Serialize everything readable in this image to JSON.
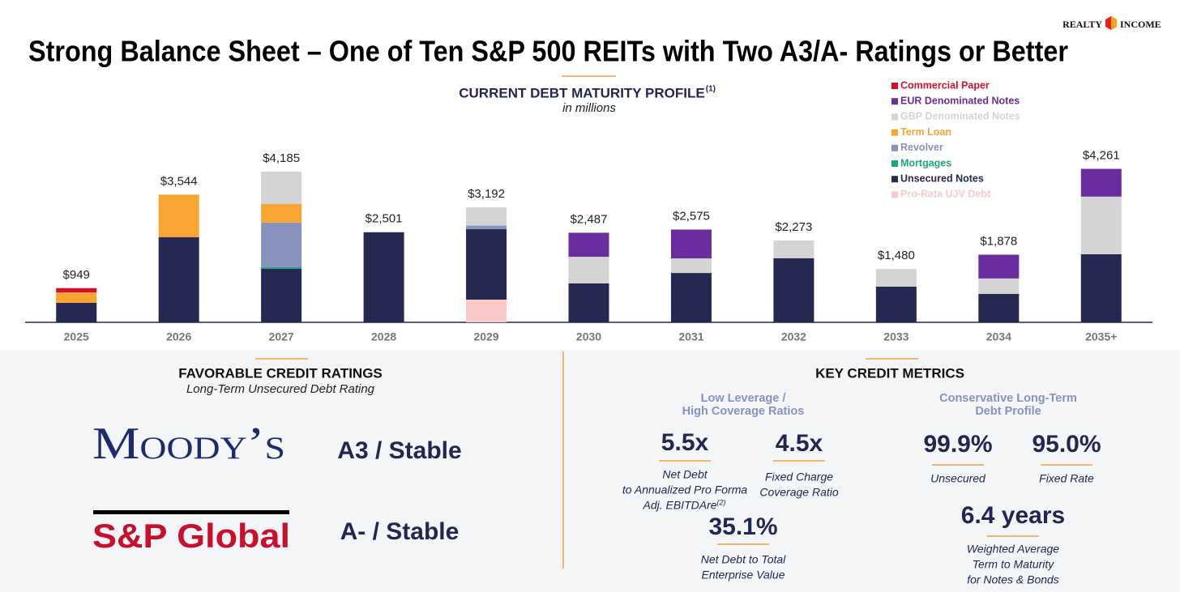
{
  "header": {
    "logo": [
      "REALTY",
      "INCOME"
    ],
    "title": "Strong Balance Sheet – One of Ten S&P 500 REITs with Two A3/A- Ratings or Better"
  },
  "chart_data": {
    "type": "stacked-bar",
    "title": "CURRENT DEBT MATURITY PROFILE",
    "title_note": "(1)",
    "subtitle": "in millions",
    "categories": [
      "2025",
      "2026",
      "2027",
      "2028",
      "2029",
      "2030",
      "2031",
      "2032",
      "2033",
      "2034",
      "2035+"
    ],
    "series": [
      {
        "name": "Commercial Paper",
        "color": "#d2112b",
        "values": [
          119,
          0,
          0,
          0,
          0,
          0,
          0,
          0,
          0,
          0,
          0
        ]
      },
      {
        "name": "EUR Denominated Notes",
        "color": "#6b2c9f",
        "values": [
          0,
          0,
          0,
          0,
          0,
          667,
          800,
          0,
          0,
          660,
          771
        ]
      },
      {
        "name": "GBP Denominated Notes",
        "color": "#d4d4d4",
        "values": [
          0,
          0,
          900,
          0,
          507,
          740,
          405,
          493,
          490,
          428,
          1600
        ]
      },
      {
        "name": "Term Loan",
        "color": "#f9a533",
        "values": [
          290,
          1179,
          515,
          0,
          0,
          0,
          0,
          0,
          0,
          0,
          0
        ]
      },
      {
        "name": "Revolver",
        "color": "#8892bf",
        "values": [
          0,
          0,
          1240,
          0,
          100,
          0,
          0,
          0,
          0,
          0,
          0
        ]
      },
      {
        "name": "Mortgages",
        "color": "#1aa87a",
        "values": [
          0,
          0,
          40,
          0,
          0,
          0,
          0,
          0,
          0,
          0,
          0
        ]
      },
      {
        "name": "Unsecured Notes",
        "color": "#252850",
        "values": [
          540,
          2365,
          1490,
          2501,
          1955,
          1080,
          1370,
          1780,
          990,
          790,
          1890
        ]
      },
      {
        "name": "Pro-Rata UJV Debt",
        "color": "#fcc9c9",
        "values": [
          0,
          0,
          0,
          0,
          630,
          0,
          0,
          0,
          0,
          0,
          0
        ]
      }
    ],
    "totals": [
      949,
      3544,
      4185,
      2501,
      3192,
      2487,
      2575,
      2273,
      1480,
      1878,
      4261
    ],
    "total_labels": [
      "$949",
      "$3,544",
      "$4,185",
      "$2,501",
      "$3,192",
      "$2,487",
      "$2,575",
      "$2,273",
      "$1,480",
      "$1,878",
      "$4,261"
    ],
    "ylim": [
      0,
      6250
    ],
    "legend": "top-right"
  },
  "ratings": {
    "title": "FAVORABLE CREDIT RATINGS",
    "subtitle": "Long-Term Unsecured Debt Rating",
    "agencies": [
      {
        "name": "Moody’s",
        "rating": "A3 / Stable"
      },
      {
        "name": "S&P Global",
        "rating": "A- / Stable"
      }
    ]
  },
  "metrics": {
    "title": "KEY CREDIT METRICS",
    "groups": [
      {
        "heading": [
          "Low Leverage /",
          "High Coverage Ratios"
        ],
        "items": [
          {
            "value": "5.5x",
            "label": [
              "Net Debt",
              "to Annualized Pro Forma",
              "Adj. EBITDAre"
            ],
            "note": "(2)"
          },
          {
            "value": "4.5x",
            "label": [
              "Fixed Charge",
              "Coverage Ratio"
            ]
          },
          {
            "value": "35.1%",
            "label": [
              "Net Debt to Total",
              "Enterprise Value"
            ]
          }
        ]
      },
      {
        "heading": [
          "Conservative Long-Term",
          "Debt Profile"
        ],
        "items": [
          {
            "value": "99.9%",
            "label": [
              "Unsecured"
            ]
          },
          {
            "value": "95.0%",
            "label": [
              "Fixed Rate"
            ]
          },
          {
            "value": "6.4 years",
            "label": [
              "Weighted Average",
              "Term to Maturity",
              "for Notes & Bonds"
            ]
          }
        ]
      }
    ]
  }
}
